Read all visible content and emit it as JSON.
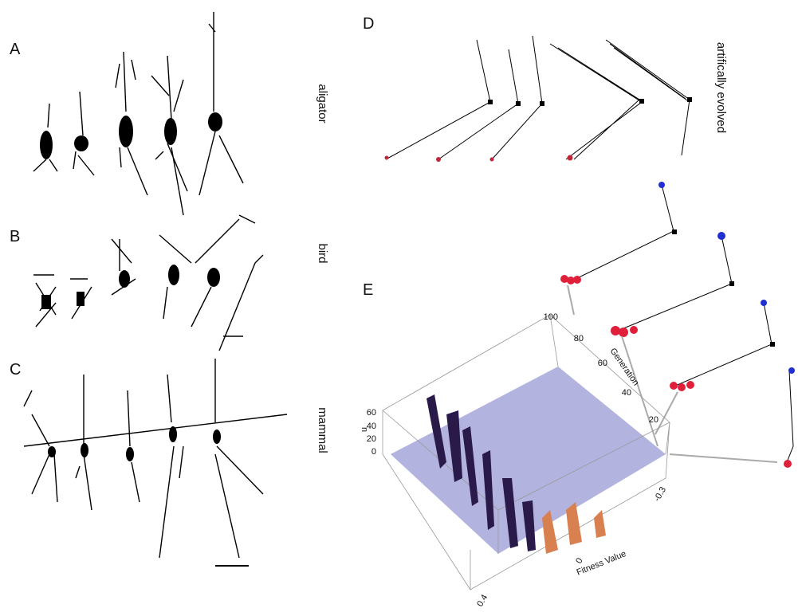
{
  "panels": [
    {
      "label": "A"
    },
    {
      "label": "B"
    },
    {
      "label": "C"
    },
    {
      "label": "D"
    },
    {
      "label": "E"
    }
  ],
  "species_labels": [
    "aligator",
    "bird",
    "mammal"
  ],
  "evolved_label": "artifically evolved",
  "plot": {
    "generation_label": "Generation",
    "generation_ticks": [
      "100",
      "80",
      "60",
      "40",
      "20"
    ],
    "n_label": "n",
    "n_ticks": [
      "60",
      "40",
      "20",
      "0"
    ],
    "fitness_label": "Fitness Value",
    "fitness_ticks": [
      "-0.3",
      "0",
      "0.4"
    ]
  }
}
